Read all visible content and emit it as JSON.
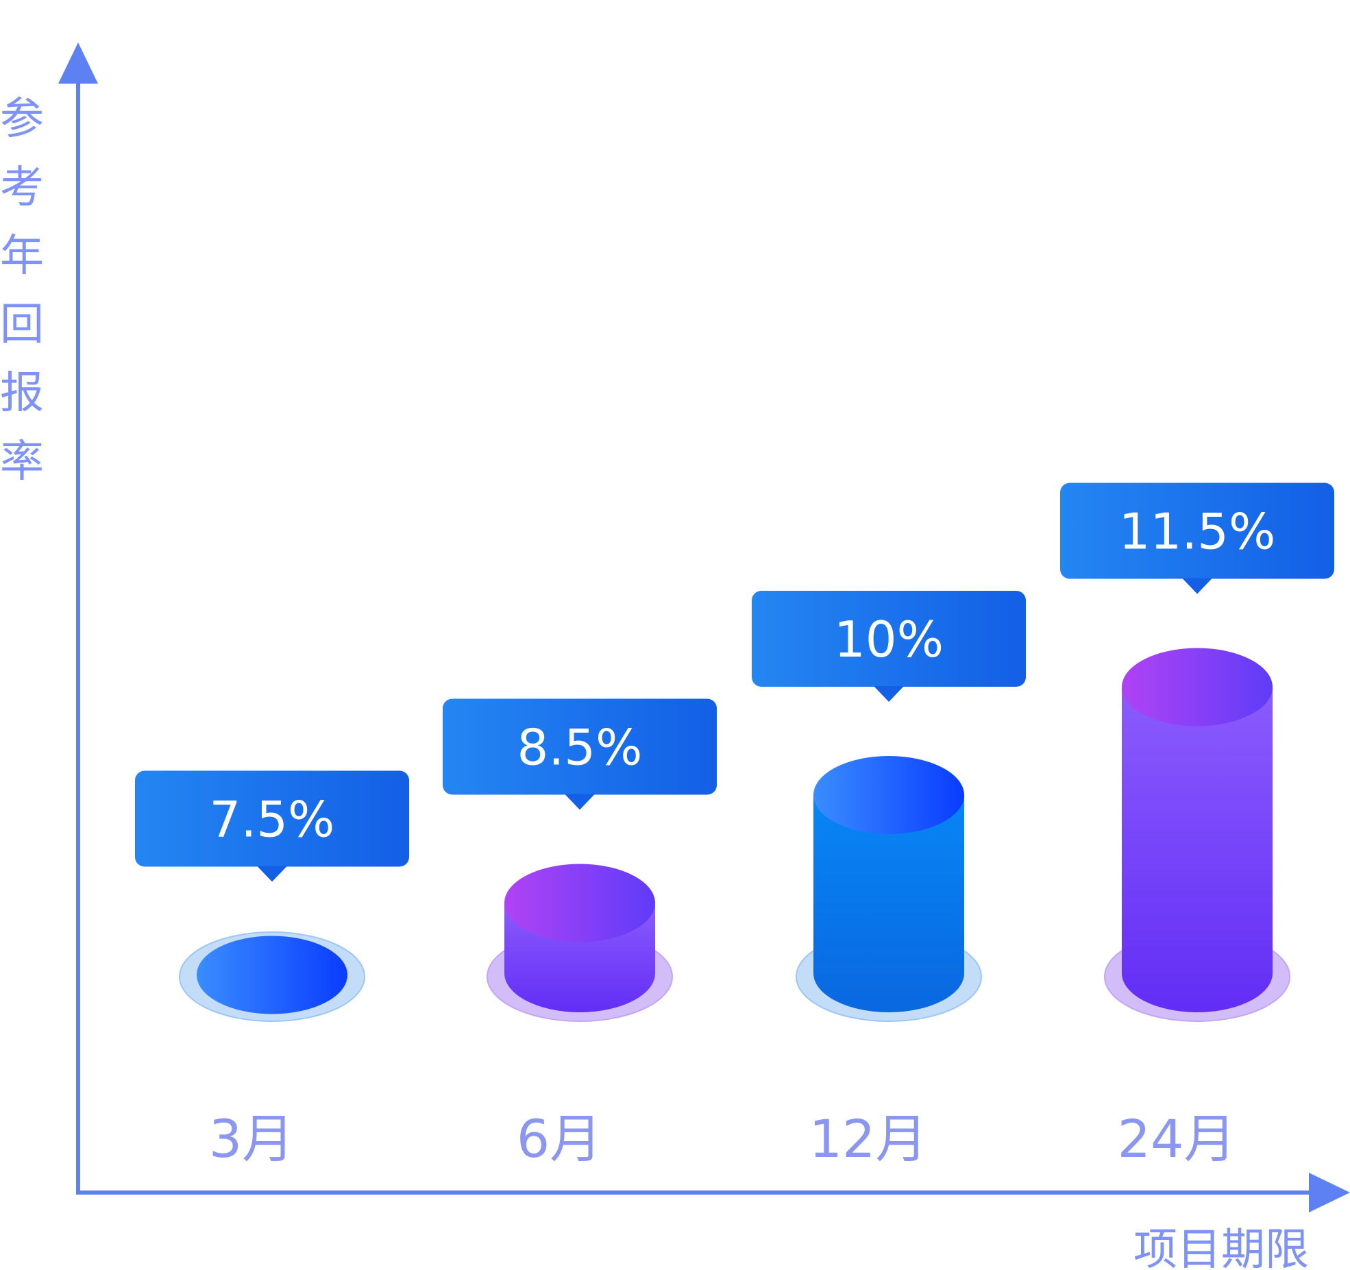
{
  "chart_data": {
    "type": "bar",
    "ylabel": "参考年回报率",
    "xlabel": "项目期限",
    "categories": [
      "3月",
      "6月",
      "12月",
      "24月"
    ],
    "values": [
      7.5,
      8.5,
      10,
      11.5
    ],
    "value_labels": [
      "7.5%",
      "8.5%",
      "10%",
      "11.5%"
    ],
    "value_unit": "%",
    "ylim": [
      6.5,
      12.3
    ],
    "grid": false,
    "legend": "none",
    "bar_styles": [
      "blue",
      "purple",
      "blue",
      "purple"
    ]
  },
  "colors": {
    "axis": "#5d80f3",
    "axis_label": "#7f92f5",
    "tick_label": "#8a96f0",
    "callout_start": "#2486f2",
    "callout_end": "#135fe6",
    "callout_text": "#ffffff",
    "blue_body_top": "#0786f6",
    "blue_body_bottom": "#0a67e0",
    "blue_cap_start": "#3a8dff",
    "blue_cap_end": "#0a3cff",
    "blue_base": "#c3dcf8",
    "blue_base_stroke": "#9cc6f5",
    "purple_body_top": "#8b5cfd",
    "purple_body_bottom": "#622df5",
    "purple_cap_start": "#b043f4",
    "purple_cap_end": "#5f3cf8",
    "purple_base": "#d3bdf9",
    "purple_base_stroke": "#c2a6f6"
  }
}
